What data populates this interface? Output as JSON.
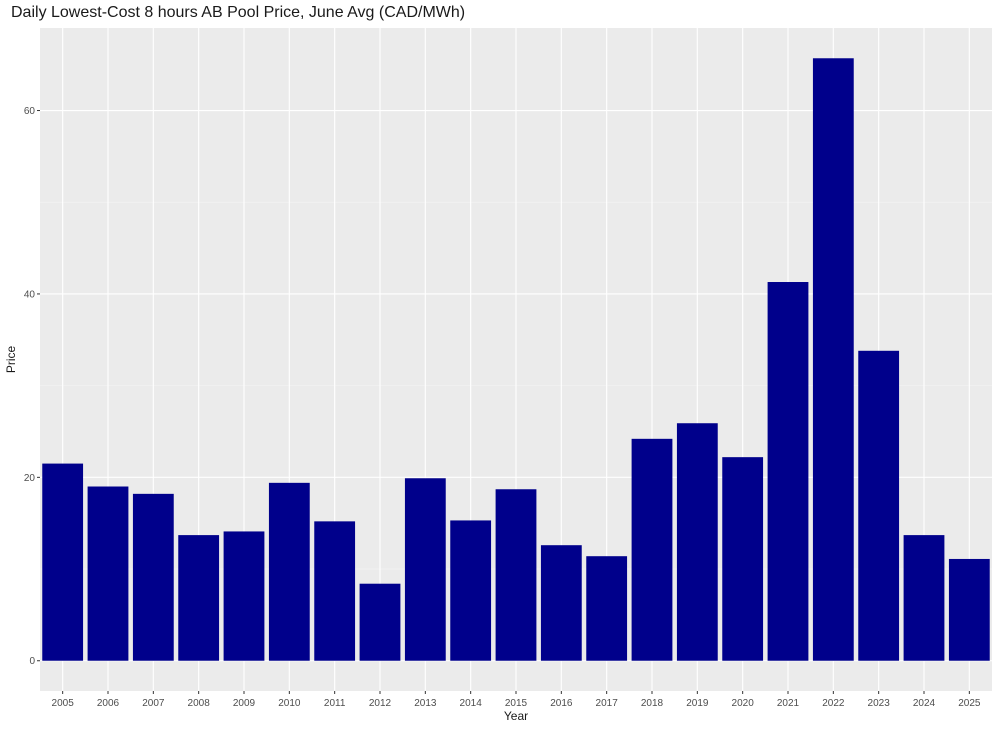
{
  "chart_data": {
    "type": "bar",
    "title": "Daily Lowest-Cost 8 hours AB Pool Price, June Avg (CAD/MWh)",
    "xlabel": "Year",
    "ylabel": "Price",
    "categories": [
      "2005",
      "2006",
      "2007",
      "2008",
      "2009",
      "2010",
      "2011",
      "2012",
      "2013",
      "2014",
      "2015",
      "2016",
      "2017",
      "2018",
      "2019",
      "2020",
      "2021",
      "2022",
      "2023",
      "2024",
      "2025"
    ],
    "values": [
      21.5,
      19.0,
      18.2,
      13.7,
      14.1,
      19.4,
      15.2,
      8.4,
      19.9,
      15.3,
      18.7,
      12.6,
      11.4,
      24.2,
      25.9,
      22.2,
      41.3,
      65.7,
      33.8,
      13.7,
      11.1
    ],
    "yticks": [
      0,
      20,
      40,
      60
    ],
    "ylim": [
      -3.3,
      69.0
    ],
    "grid": true,
    "colors": {
      "bar": "#00008B",
      "panel": "#EBEBEB",
      "grid_major": "#FFFFFF"
    }
  }
}
